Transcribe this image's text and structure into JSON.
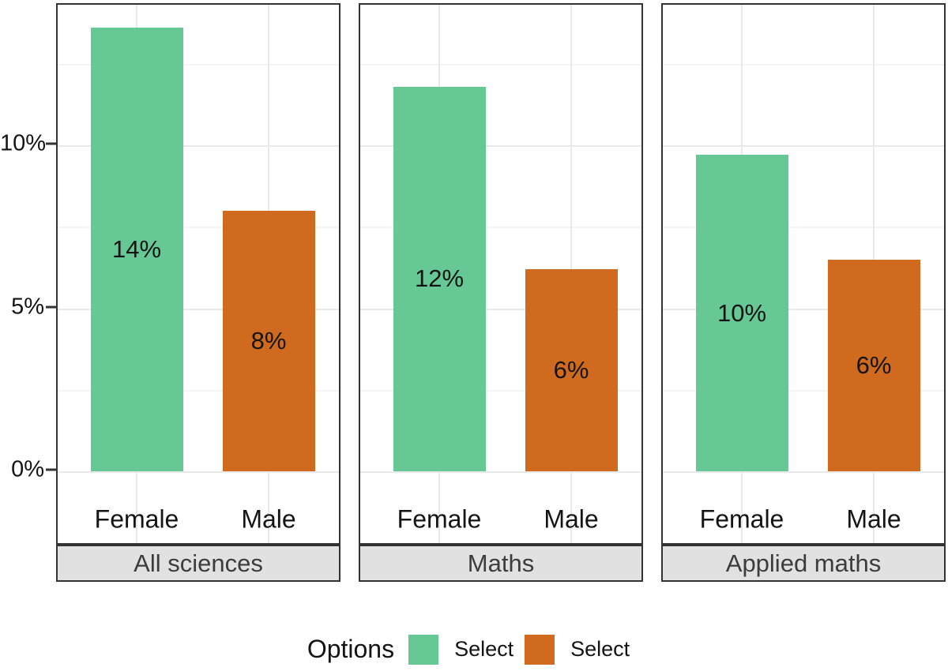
{
  "colors": {
    "bar_female": "#66C894",
    "bar_male": "#CF6A1F",
    "panel_border": "#333333",
    "strip_bg": "#E1E1E1",
    "strip_text": "#3C3C3C",
    "grid_major": "#E9E9E9",
    "grid_minor": "#F4F4F4",
    "axis_text": "#141414",
    "background": "#FFFFFF"
  },
  "chart_data": {
    "type": "bar",
    "title": "",
    "categories": [
      "Female",
      "Male"
    ],
    "facets": [
      {
        "label": "All sciences",
        "values": [
          13.6,
          8.0
        ],
        "bar_labels": [
          "14%",
          "8%"
        ]
      },
      {
        "label": "Maths",
        "values": [
          11.8,
          6.2
        ],
        "bar_labels": [
          "12%",
          "6%"
        ]
      },
      {
        "label": "Applied maths",
        "values": [
          9.7,
          6.5
        ],
        "bar_labels": [
          "10%",
          "6%"
        ]
      }
    ],
    "series": [
      {
        "name": "Select",
        "color": "#66C894"
      },
      {
        "name": "Select",
        "color": "#CF6A1F"
      }
    ],
    "y_axis": {
      "tick_labels": [
        "0%",
        "5%",
        "10%"
      ],
      "tick_values": [
        0,
        5,
        10
      ],
      "minor_values": [
        2.5,
        7.5,
        12.5
      ],
      "ylim": [
        0,
        14.3
      ],
      "unit": "percent"
    },
    "legend": {
      "position": "bottom",
      "title": "Options",
      "entries": [
        {
          "label": "Select",
          "color": "#66C894"
        },
        {
          "label": "Select",
          "color": "#CF6A1F"
        }
      ]
    },
    "grid": true,
    "strip_position": "bottom"
  }
}
